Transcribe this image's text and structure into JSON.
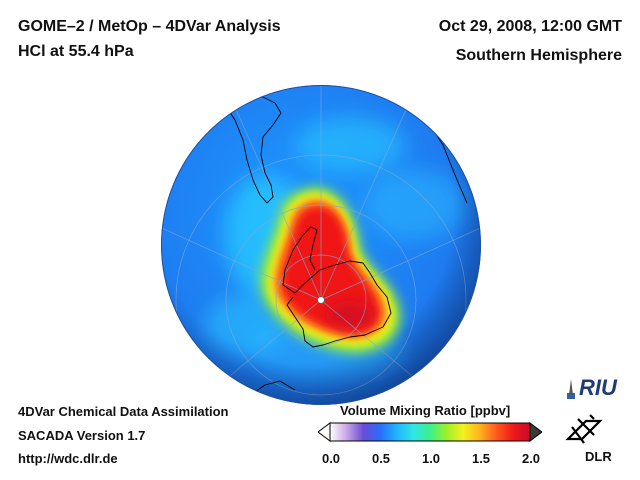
{
  "header": {
    "title": "GOME–2 / MetOp – 4DVar Analysis",
    "subtitle": "HCl at 55.4 hPa",
    "date": "Oct 29, 2008, 12:00 GMT",
    "hemisphere": "Southern Hemisphere"
  },
  "footer": {
    "line1": "4DVar Chemical Data Assimilation",
    "line2": "SACADA Version 1.7",
    "line3": "http://wdc.dlr.de"
  },
  "colorbar": {
    "title": "Volume Mixing Ratio [ppbv]",
    "ticks": [
      "0.0",
      "0.5",
      "1.0",
      "1.5",
      "2.0"
    ],
    "range": [
      0.0,
      2.0
    ],
    "stops": [
      "#ffffff",
      "#c9a6e6",
      "#6a4cd6",
      "#2a6cff",
      "#1fb4ff",
      "#2ee6e6",
      "#3cf08a",
      "#9df02a",
      "#f4f01e",
      "#ffb21e",
      "#ff5a1e",
      "#f01818",
      "#c80a2a"
    ]
  },
  "logos": {
    "riu": "RIU",
    "dlr": "DLR"
  },
  "colors": {
    "background": "#1e82ff",
    "high": "#f01818",
    "land_outline": "#000000"
  }
}
